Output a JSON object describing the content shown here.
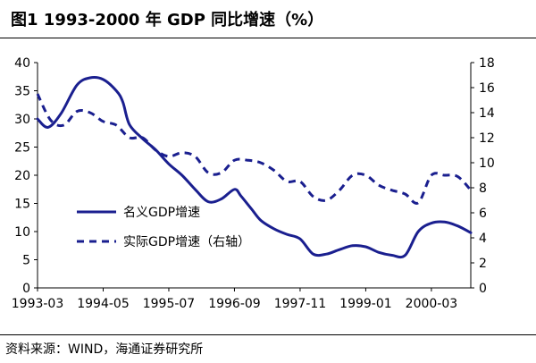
{
  "title": "图1   1993-2000 年 GDP 同比增速（%）",
  "source": "资料来源：WIND，海通证券研究所",
  "colors": {
    "series": "#1a1f8f",
    "axis": "#000000"
  },
  "chart_data": {
    "type": "line",
    "title": "图1   1993-2000 年 GDP 同比增速（%）",
    "x_tick_labels": [
      "1993-03",
      "1994-05",
      "1995-07",
      "1996-09",
      "1997-11",
      "1999-01",
      "2000-03"
    ],
    "x_tick_quarter_index": [
      0,
      5,
      10,
      15,
      20,
      25,
      30
    ],
    "x_range_quarter_index": [
      0,
      33
    ],
    "left_axis": {
      "min": 0,
      "max": 40,
      "step": 5,
      "ticks": [
        0,
        5,
        10,
        15,
        20,
        25,
        30,
        35,
        40
      ]
    },
    "right_axis": {
      "min": 0,
      "max": 18,
      "step": 2,
      "ticks": [
        0,
        2,
        4,
        6,
        8,
        10,
        12,
        14,
        16,
        18
      ]
    },
    "grid": false,
    "legend_position": "center-left",
    "series": [
      {
        "name": "名义GDP增速",
        "axis": "left",
        "style": "solid",
        "x": [
          0,
          0.8,
          1.8,
          3,
          4,
          5,
          6,
          6.5,
          7,
          8,
          9,
          10,
          11,
          12,
          13,
          14,
          15,
          15.5,
          16.3,
          17,
          18,
          19,
          20,
          21,
          22,
          23,
          24,
          25,
          26,
          27,
          28,
          29,
          30,
          31,
          32,
          33
        ],
        "y": [
          30,
          28.5,
          31,
          36,
          37.3,
          37,
          35,
          33,
          29,
          26.5,
          24.5,
          22,
          20,
          17.5,
          15.3,
          15.8,
          17.5,
          16.3,
          14,
          12,
          10.5,
          9.5,
          8.7,
          6,
          6,
          6.8,
          7.5,
          7.3,
          6.3,
          5.8,
          5.8,
          10,
          11.5,
          11.7,
          11,
          9.8
        ]
      },
      {
        "name": "实际GDP增速（右轴）",
        "axis": "right",
        "style": "dashed",
        "x": [
          0,
          1,
          2,
          3,
          4,
          5,
          6,
          7,
          8,
          9,
          10,
          11,
          12,
          13,
          14,
          15,
          16,
          17,
          18,
          19,
          20,
          21,
          22,
          23,
          24,
          25,
          26,
          27,
          28,
          29,
          30,
          31,
          32,
          33
        ],
        "y": [
          15.5,
          13.4,
          13,
          14.1,
          14,
          13.3,
          13,
          12,
          12,
          11,
          10.5,
          10.8,
          10.5,
          9.2,
          9.2,
          10.2,
          10.2,
          10,
          9.4,
          8.5,
          8.5,
          7.3,
          7,
          7.8,
          9,
          9,
          8.2,
          7.8,
          7.5,
          6.8,
          9,
          9,
          8.9,
          7.8
        ]
      }
    ]
  }
}
